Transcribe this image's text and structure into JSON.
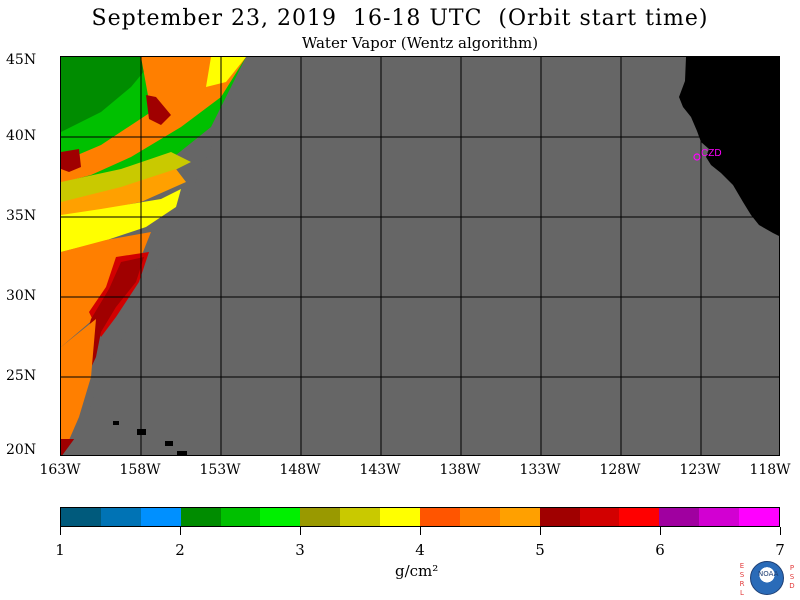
{
  "header": {
    "title": "September 23, 2019  16-18 UTC  (Orbit start time)",
    "subtitle": "Water Vapor (Wentz algorithm)"
  },
  "map": {
    "lat_labels": [
      "45N",
      "40N",
      "35N",
      "30N",
      "25N",
      "20N"
    ],
    "lon_labels": [
      "163W",
      "158W",
      "153W",
      "148W",
      "143W",
      "138W",
      "133W",
      "128W",
      "123W",
      "118W"
    ],
    "station_label": "CZD",
    "colors": {
      "no_data": "#666666",
      "land": "#000000",
      "grid": "#000000",
      "station": "#ff00ff"
    }
  },
  "colorbar": {
    "ticks": [
      "1",
      "2",
      "3",
      "4",
      "5",
      "6",
      "7"
    ],
    "units": "g/cm²",
    "colors": [
      "#005a7c",
      "#0073b5",
      "#0090ff",
      "#008c00",
      "#00c000",
      "#00f000",
      "#999900",
      "#c9c900",
      "#ffff00",
      "#ff5500",
      "#ff7f00",
      "#ffa000",
      "#a00000",
      "#d20000",
      "#ff0000",
      "#a000a0",
      "#d200d2",
      "#ff00ff"
    ]
  },
  "logo": {
    "left_letters": [
      "E",
      "S",
      "R",
      "L"
    ],
    "right_letters": [
      "P",
      "S",
      "D"
    ],
    "emblem": "NOAA"
  }
}
